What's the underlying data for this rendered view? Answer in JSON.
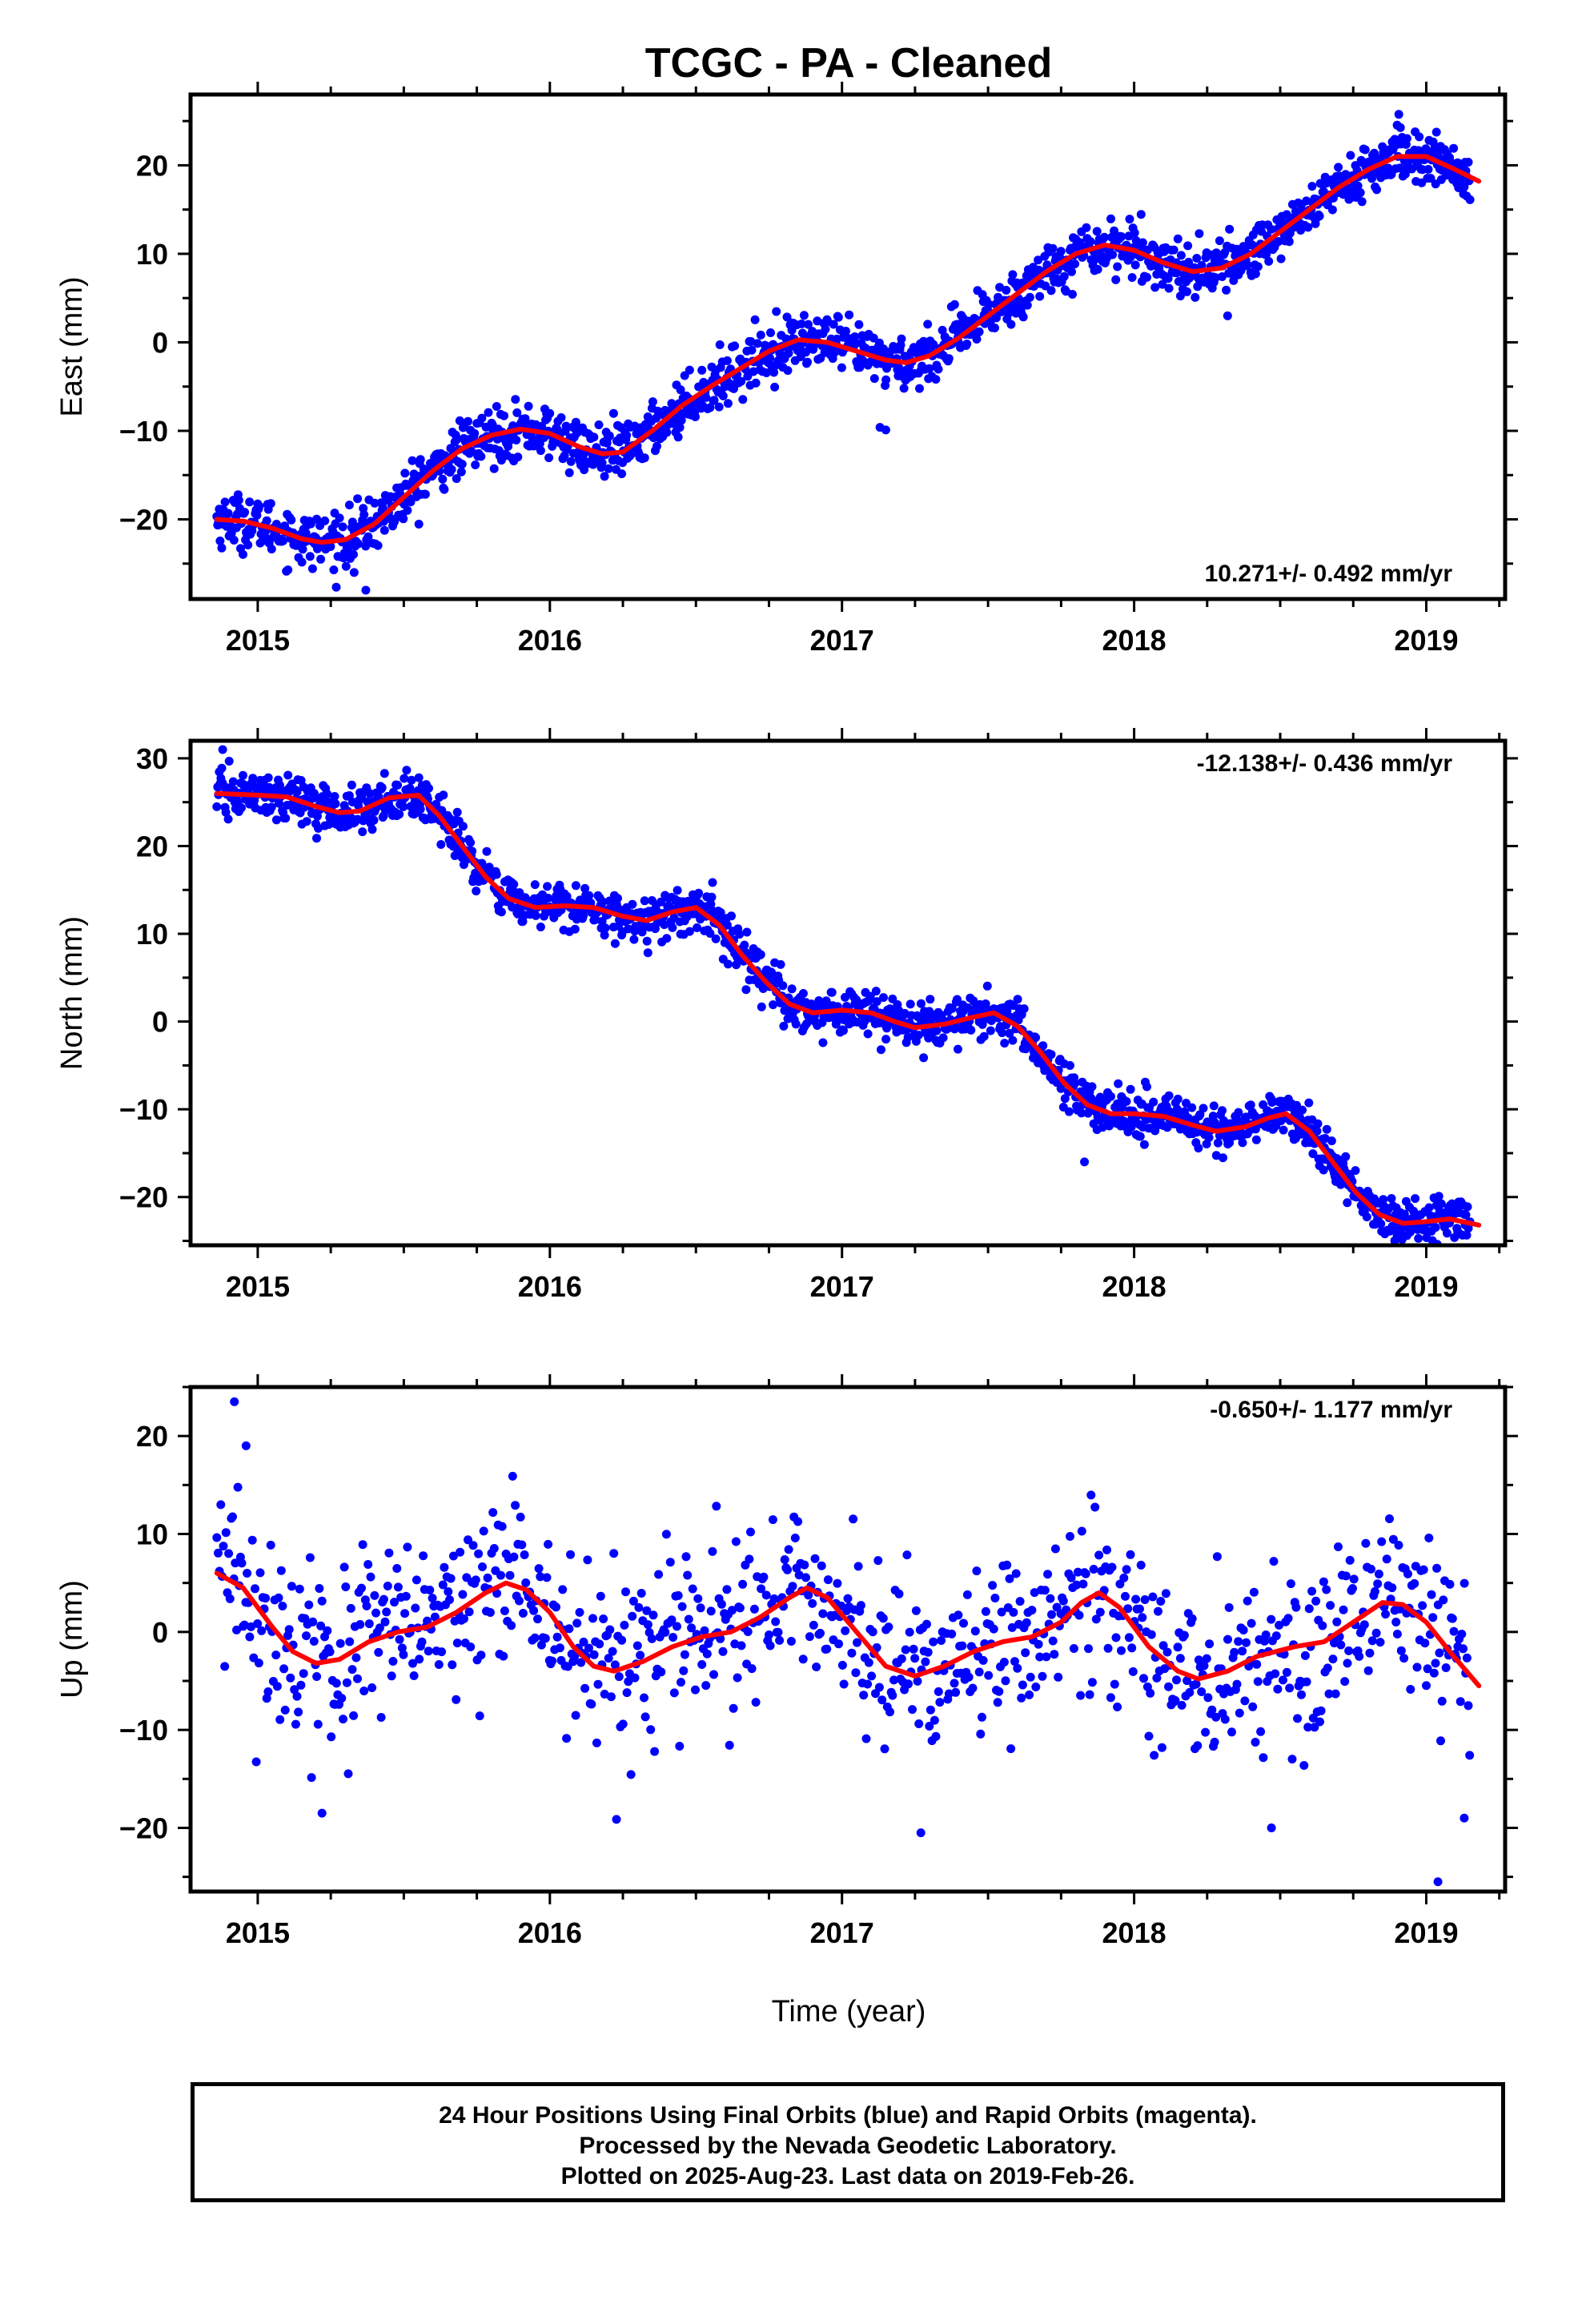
{
  "title": "TCGC  - PA - Cleaned",
  "xlabel": "Time (year)",
  "footer": [
    "24 Hour Positions Using Final Orbits (blue) and Rapid Orbits (magenta).",
    "Processed by the Nevada Geodetic Laboratory.",
    "Plotted on 2025-Aug-23. Last data on 2019-Feb-26."
  ],
  "colors": {
    "points": "#0000ff",
    "fit": "#ff0000",
    "frame": "#000000"
  },
  "chart_data": [
    {
      "type": "scatter",
      "component": "east",
      "ylabel": "East (mm)",
      "rate_label": "10.271+/- 0.492 mm/yr",
      "rate_position": "bottom-right",
      "xlim": [
        2014.77,
        2019.27
      ],
      "ylim": [
        -29,
        28
      ],
      "xticks": [
        2015,
        2016,
        2017,
        2018,
        2019
      ],
      "yticks": [
        -20,
        -10,
        0,
        10,
        20
      ],
      "scatter_std_mm": 1.5,
      "outliers": [
        {
          "x": 2015.37,
          "y": -28
        },
        {
          "x": 2015.33,
          "y": -26
        },
        {
          "x": 2017.13,
          "y": -9.6
        },
        {
          "x": 2017.15,
          "y": -9.9
        },
        {
          "x": 2018.32,
          "y": 3
        }
      ],
      "fit": [
        [
          2014.86,
          -20.0
        ],
        [
          2014.95,
          -20.2
        ],
        [
          2015.05,
          -21.0
        ],
        [
          2015.15,
          -22.2
        ],
        [
          2015.22,
          -22.6
        ],
        [
          2015.3,
          -22.3
        ],
        [
          2015.4,
          -20.5
        ],
        [
          2015.5,
          -17.5
        ],
        [
          2015.6,
          -14.5
        ],
        [
          2015.7,
          -12.0
        ],
        [
          2015.8,
          -10.5
        ],
        [
          2015.9,
          -9.8
        ],
        [
          2016.0,
          -10.3
        ],
        [
          2016.1,
          -11.8
        ],
        [
          2016.18,
          -12.6
        ],
        [
          2016.25,
          -12.4
        ],
        [
          2016.35,
          -10.0
        ],
        [
          2016.45,
          -7.2
        ],
        [
          2016.55,
          -5.0
        ],
        [
          2016.65,
          -3.0
        ],
        [
          2016.75,
          -1.0
        ],
        [
          2016.85,
          0.3
        ],
        [
          2016.95,
          0.0
        ],
        [
          2017.05,
          -1.0
        ],
        [
          2017.15,
          -2.0
        ],
        [
          2017.22,
          -2.3
        ],
        [
          2017.3,
          -1.5
        ],
        [
          2017.4,
          0.5
        ],
        [
          2017.5,
          3.0
        ],
        [
          2017.6,
          5.5
        ],
        [
          2017.7,
          8.0
        ],
        [
          2017.8,
          10.0
        ],
        [
          2017.9,
          11.0
        ],
        [
          2018.0,
          10.4
        ],
        [
          2018.1,
          9.0
        ],
        [
          2018.2,
          8.0
        ],
        [
          2018.3,
          8.4
        ],
        [
          2018.4,
          10.0
        ],
        [
          2018.5,
          12.5
        ],
        [
          2018.6,
          15.0
        ],
        [
          2018.7,
          17.5
        ],
        [
          2018.8,
          19.5
        ],
        [
          2018.9,
          21.0
        ],
        [
          2019.0,
          21.0
        ],
        [
          2019.1,
          19.5
        ],
        [
          2019.18,
          18.2
        ]
      ]
    },
    {
      "type": "scatter",
      "component": "north",
      "ylabel": "North (mm)",
      "rate_label": "-12.138+/- 0.436 mm/yr",
      "rate_position": "top-right",
      "xlim": [
        2014.77,
        2019.27
      ],
      "ylim": [
        -25.5,
        32
      ],
      "xticks": [
        2015,
        2016,
        2017,
        2018,
        2019
      ],
      "yticks": [
        -20,
        -10,
        0,
        10,
        20,
        30
      ],
      "scatter_std_mm": 1.3,
      "outliers": [
        {
          "x": 2017.83,
          "y": -16
        },
        {
          "x": 2016.79,
          "y": 6.5
        },
        {
          "x": 2014.88,
          "y": 31
        }
      ],
      "fit": [
        [
          2014.86,
          26.0
        ],
        [
          2015.0,
          25.8
        ],
        [
          2015.1,
          25.6
        ],
        [
          2015.2,
          24.5
        ],
        [
          2015.28,
          23.8
        ],
        [
          2015.35,
          24.0
        ],
        [
          2015.45,
          25.5
        ],
        [
          2015.55,
          25.8
        ],
        [
          2015.62,
          23.5
        ],
        [
          2015.7,
          20.0
        ],
        [
          2015.78,
          16.5
        ],
        [
          2015.86,
          14.0
        ],
        [
          2015.95,
          13.0
        ],
        [
          2016.05,
          13.2
        ],
        [
          2016.15,
          13.0
        ],
        [
          2016.25,
          12.0
        ],
        [
          2016.33,
          11.5
        ],
        [
          2016.42,
          12.5
        ],
        [
          2016.5,
          13.0
        ],
        [
          2016.58,
          11.0
        ],
        [
          2016.66,
          7.5
        ],
        [
          2016.74,
          4.5
        ],
        [
          2016.82,
          2.0
        ],
        [
          2016.9,
          1.0
        ],
        [
          2017.0,
          1.3
        ],
        [
          2017.1,
          1.0
        ],
        [
          2017.18,
          0.0
        ],
        [
          2017.25,
          -0.7
        ],
        [
          2017.35,
          -0.3
        ],
        [
          2017.45,
          0.5
        ],
        [
          2017.52,
          1.0
        ],
        [
          2017.6,
          -0.5
        ],
        [
          2017.68,
          -3.5
        ],
        [
          2017.76,
          -7.0
        ],
        [
          2017.84,
          -9.5
        ],
        [
          2017.92,
          -10.5
        ],
        [
          2018.0,
          -10.5
        ],
        [
          2018.1,
          -10.8
        ],
        [
          2018.2,
          -11.8
        ],
        [
          2018.28,
          -12.5
        ],
        [
          2018.38,
          -12.0
        ],
        [
          2018.46,
          -11.0
        ],
        [
          2018.52,
          -10.5
        ],
        [
          2018.6,
          -12.5
        ],
        [
          2018.68,
          -16.0
        ],
        [
          2018.76,
          -19.5
        ],
        [
          2018.84,
          -22.0
        ],
        [
          2018.92,
          -23.0
        ],
        [
          2019.0,
          -22.8
        ],
        [
          2019.08,
          -22.5
        ],
        [
          2019.18,
          -23.2
        ]
      ]
    },
    {
      "type": "scatter",
      "component": "up",
      "ylabel": "Up (mm)",
      "rate_label": "-0.650+/- 1.177 mm/yr",
      "rate_position": "top-right",
      "xlim": [
        2014.77,
        2019.27
      ],
      "ylim": [
        -26.5,
        25
      ],
      "xticks": [
        2015,
        2016,
        2017,
        2018,
        2019
      ],
      "yticks": [
        -20,
        -10,
        0,
        10,
        20
      ],
      "scatter_std_mm": 4.5,
      "outliers": [
        {
          "x": 2014.92,
          "y": 23.5
        },
        {
          "x": 2014.96,
          "y": 19
        },
        {
          "x": 2019.04,
          "y": -25.5
        },
        {
          "x": 2015.22,
          "y": -18.5
        },
        {
          "x": 2017.27,
          "y": -20.5
        },
        {
          "x": 2018.47,
          "y": -20
        },
        {
          "x": 2019.13,
          "y": -19
        }
      ],
      "fit": [
        [
          2014.86,
          6.0
        ],
        [
          2014.95,
          4.5
        ],
        [
          2015.05,
          0.5
        ],
        [
          2015.12,
          -2.0
        ],
        [
          2015.2,
          -3.2
        ],
        [
          2015.28,
          -2.8
        ],
        [
          2015.38,
          -1.0
        ],
        [
          2015.48,
          0.0
        ],
        [
          2015.58,
          0.5
        ],
        [
          2015.68,
          2.0
        ],
        [
          2015.78,
          4.0
        ],
        [
          2015.85,
          5.0
        ],
        [
          2015.92,
          4.3
        ],
        [
          2016.0,
          2.0
        ],
        [
          2016.08,
          -1.5
        ],
        [
          2016.15,
          -3.5
        ],
        [
          2016.22,
          -4.0
        ],
        [
          2016.32,
          -3.0
        ],
        [
          2016.42,
          -1.5
        ],
        [
          2016.52,
          -0.5
        ],
        [
          2016.62,
          0.0
        ],
        [
          2016.72,
          1.5
        ],
        [
          2016.82,
          3.5
        ],
        [
          2016.88,
          4.5
        ],
        [
          2016.95,
          3.5
        ],
        [
          2017.05,
          0.0
        ],
        [
          2017.15,
          -3.5
        ],
        [
          2017.25,
          -4.5
        ],
        [
          2017.35,
          -3.5
        ],
        [
          2017.45,
          -2.0
        ],
        [
          2017.55,
          -1.0
        ],
        [
          2017.65,
          -0.5
        ],
        [
          2017.75,
          1.0
        ],
        [
          2017.82,
          3.0
        ],
        [
          2017.88,
          4.0
        ],
        [
          2017.95,
          2.5
        ],
        [
          2018.05,
          -1.5
        ],
        [
          2018.15,
          -4.0
        ],
        [
          2018.22,
          -4.8
        ],
        [
          2018.32,
          -4.0
        ],
        [
          2018.42,
          -2.5
        ],
        [
          2018.55,
          -1.5
        ],
        [
          2018.65,
          -1.0
        ],
        [
          2018.75,
          1.0
        ],
        [
          2018.85,
          3.0
        ],
        [
          2018.92,
          2.8
        ],
        [
          2019.0,
          1.0
        ],
        [
          2019.08,
          -2.0
        ],
        [
          2019.18,
          -5.5
        ]
      ]
    }
  ]
}
